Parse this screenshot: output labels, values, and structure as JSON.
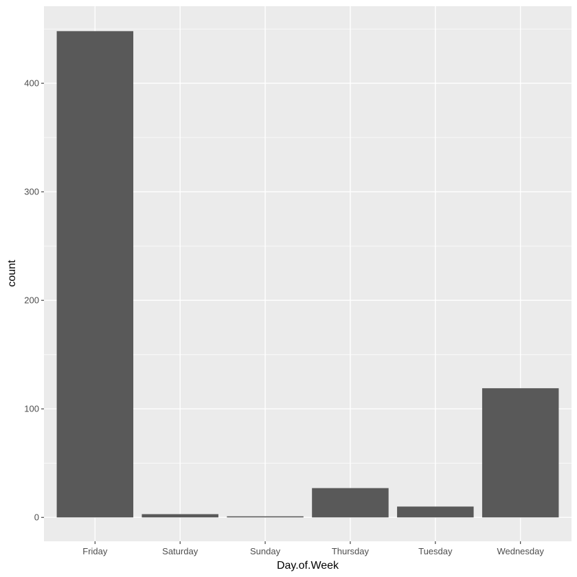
{
  "chart_data": {
    "type": "bar",
    "xlabel": "Day.of.Week",
    "ylabel": "count",
    "categories": [
      "Friday",
      "Saturday",
      "Sunday",
      "Thursday",
      "Tuesday",
      "Wednesday"
    ],
    "values": [
      448,
      3,
      1,
      27,
      10,
      119
    ],
    "ylim": [
      -22,
      471
    ],
    "yticks": [
      0,
      100,
      200,
      300,
      400
    ],
    "grid": true,
    "colors": {
      "panel": "#ebebeb",
      "grid_major": "#ffffff",
      "bar": "#595959",
      "tick_mark": "#333333"
    }
  }
}
